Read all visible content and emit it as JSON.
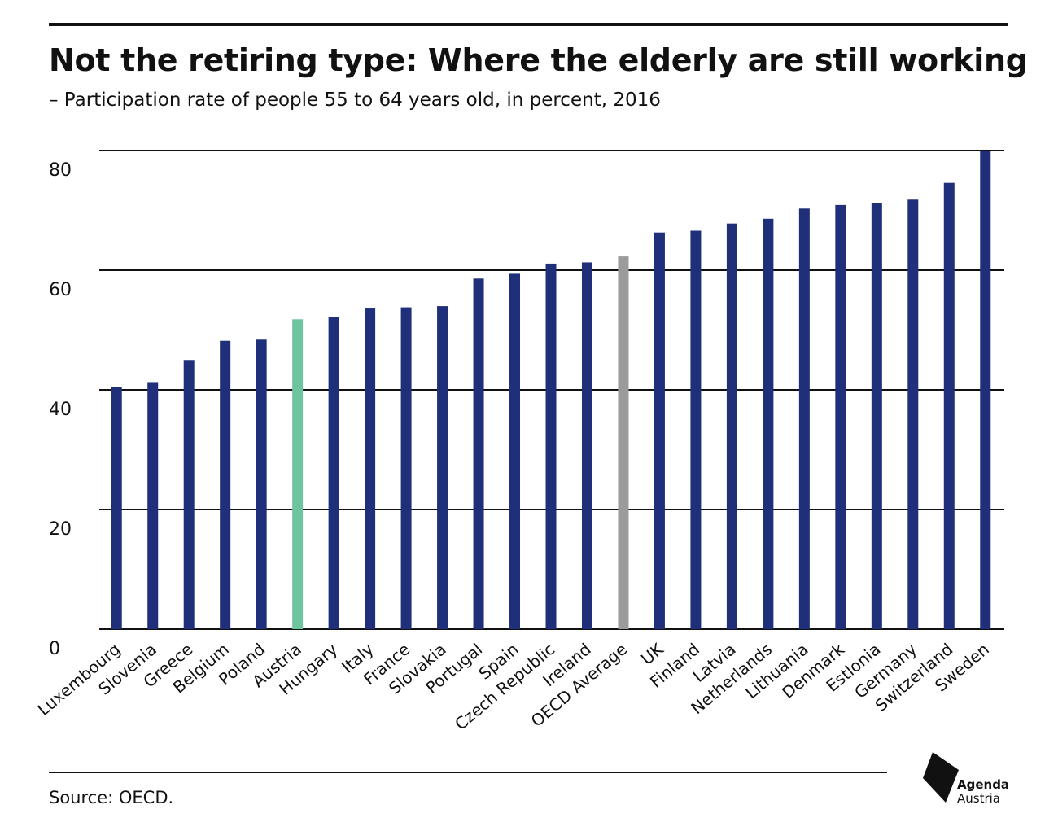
{
  "header": {
    "title": "Not the retiring type: Where the elderly are still working",
    "subtitle": "– Participation rate of people 55 to 64 years old, in percent, 2016"
  },
  "footer": {
    "source": "Source: OECD.",
    "logo_line1": "Agenda",
    "logo_line2": "Austria"
  },
  "colors": {
    "default": "#1f2f7a",
    "highlight": "#6fc4a0",
    "average": "#9b9b9b",
    "grid": "#111111"
  },
  "chart_data": {
    "type": "bar",
    "title": "Not the retiring type: Where the elderly are still working",
    "subtitle": "– Participation rate of people 55 to 64 years old, in percent, 2016",
    "xlabel": "",
    "ylabel": "",
    "ylim": [
      0,
      80
    ],
    "yticks": [
      0,
      20,
      40,
      60,
      80
    ],
    "grid": true,
    "categories": [
      "Luxembourg",
      "Slovenia",
      "Greece",
      "Belgium",
      "Poland",
      "Austria",
      "Hungary",
      "Italy",
      "France",
      "Slovakia",
      "Portugal",
      "Spain",
      "Czech Republic",
      "Ireland",
      "OECD Average",
      "UK",
      "Finland",
      "Latvia",
      "Netherlands",
      "Lithuania",
      "Denmark",
      "Estlonia",
      "Germany",
      "Switzerland",
      "Sweden"
    ],
    "values": [
      40.5,
      41.3,
      45.0,
      48.2,
      48.4,
      51.8,
      52.2,
      53.6,
      53.8,
      54.0,
      58.6,
      59.4,
      61.1,
      61.3,
      62.3,
      66.3,
      66.6,
      67.8,
      68.6,
      70.3,
      70.9,
      71.2,
      71.8,
      74.6,
      80.0
    ],
    "highlight": {
      "Austria": "highlight",
      "OECD Average": "average"
    },
    "source": "Source: OECD."
  }
}
